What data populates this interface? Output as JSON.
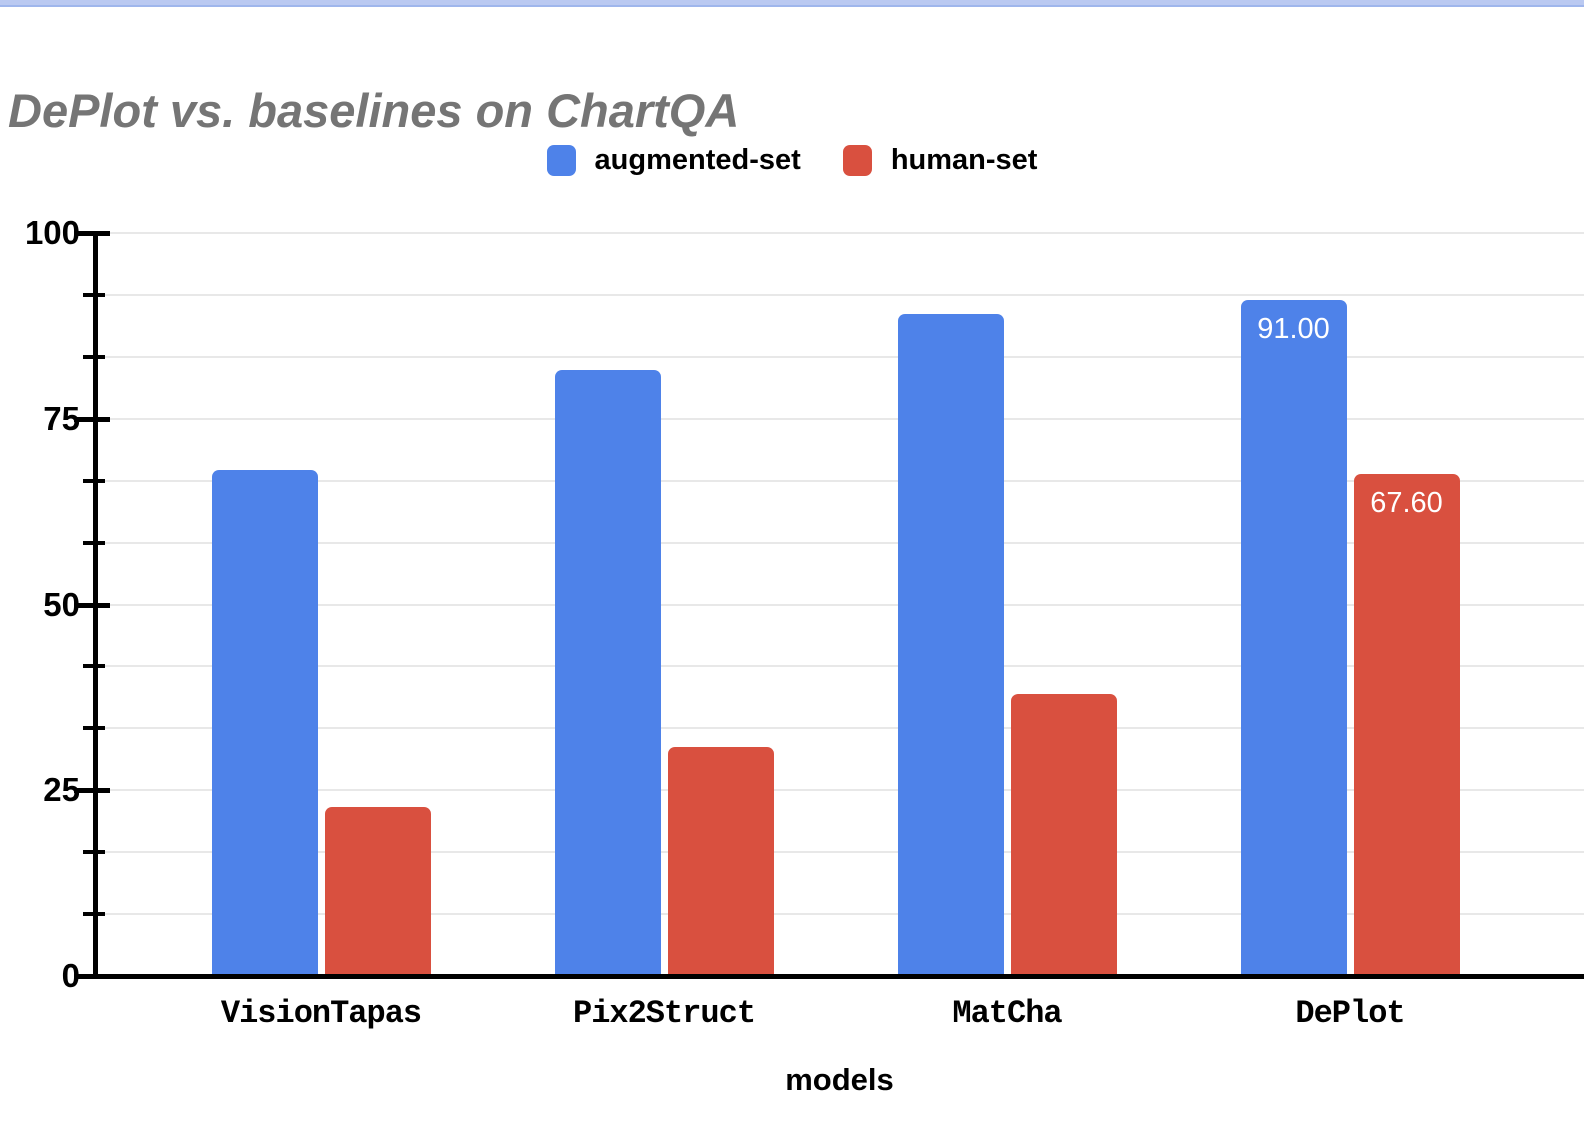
{
  "page": {
    "title": "DePlot vs. baselines on ChartQA"
  },
  "legend": {
    "items": [
      {
        "label": "augmented-set",
        "color": "#4e82e9"
      },
      {
        "label": "human-set",
        "color": "#d9503f"
      }
    ]
  },
  "chart_data": {
    "type": "bar",
    "title": "DePlot vs. baselines on ChartQA",
    "categories": [
      "VisionTapas",
      "Pix2Struct",
      "MatCha",
      "DePlot"
    ],
    "series": [
      {
        "name": "augmented-set",
        "color": "#4e82e9",
        "values": [
          68.1,
          81.5,
          89.1,
          91.0
        ],
        "value_labels": [
          "",
          "",
          "",
          "91.00"
        ]
      },
      {
        "name": "human-set",
        "color": "#d9503f",
        "values": [
          22.8,
          30.8,
          37.9,
          67.6
        ],
        "value_labels": [
          "",
          "",
          "",
          "67.60"
        ]
      }
    ],
    "xlabel": "models",
    "ylabel": "",
    "ylim": [
      0,
      100
    ],
    "yticks": [
      0,
      25,
      50,
      75,
      100
    ],
    "minor_gridline_count": 12,
    "grid": "on",
    "legend_position": "top",
    "axis_color": "#000000",
    "gridline_color": "#e8e8e8",
    "title_color": "#757575"
  }
}
